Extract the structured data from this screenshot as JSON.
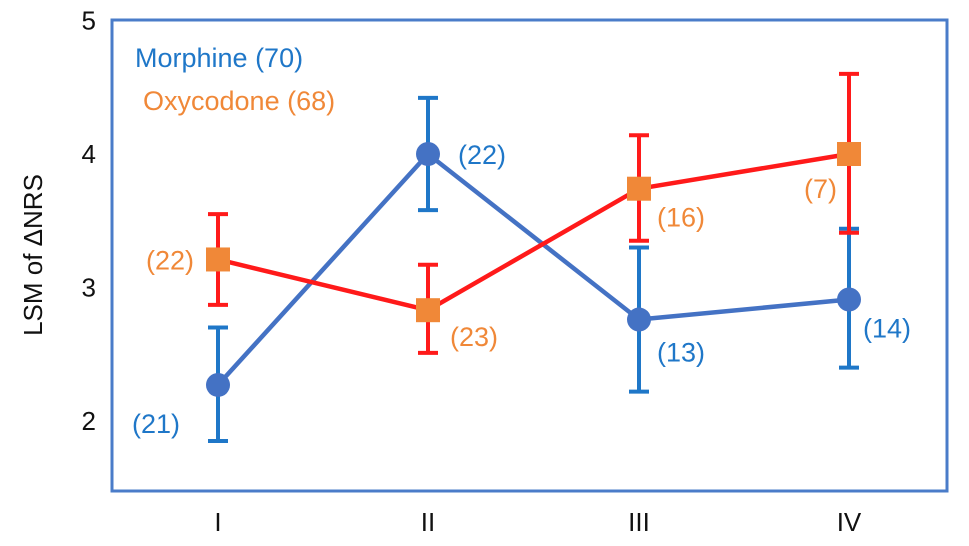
{
  "chart_data": {
    "type": "line",
    "categories": [
      "I",
      "II",
      "III",
      "IV"
    ],
    "ylabel": "LSM of ΔNRS",
    "ylim": [
      1.5,
      5
    ],
    "yticks": [
      2,
      3,
      4,
      5
    ],
    "grid": false,
    "legend_position": "top-left",
    "series": [
      {
        "name": "Morphine (70)",
        "marker": "circle",
        "line_color": "#4472C4",
        "marker_color": "#4472C4",
        "error_color": "#1F77C8",
        "label_color": "#1F77C8",
        "values": [
          2.27,
          4.0,
          2.76,
          2.91
        ],
        "err_low": [
          1.85,
          3.58,
          2.22,
          2.4
        ],
        "err_high": [
          2.7,
          4.42,
          3.3,
          3.44
        ],
        "labels": [
          "(21)",
          "(22)",
          "(13)",
          "(14)"
        ]
      },
      {
        "name": "Oxycodone (68)",
        "marker": "square",
        "line_color": "#FF1A1A",
        "marker_color": "#F08838",
        "error_color": "#FF1A1A",
        "label_color": "#F08838",
        "values": [
          3.21,
          2.83,
          3.74,
          4.0
        ],
        "err_low": [
          2.87,
          2.51,
          3.35,
          3.41
        ],
        "err_high": [
          3.55,
          3.17,
          4.14,
          4.6
        ],
        "labels": [
          "(22)",
          "(23)",
          "(16)",
          "(7)"
        ]
      }
    ]
  }
}
